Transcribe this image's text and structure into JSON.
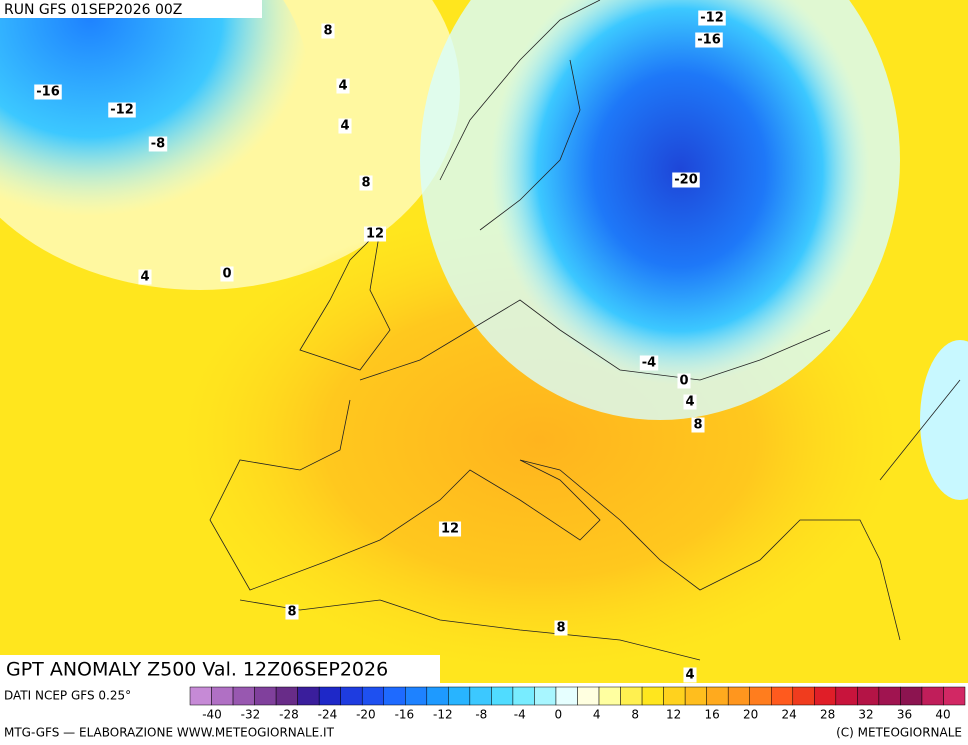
{
  "header": {
    "run": "RUN GFS 01SEP2026 00Z"
  },
  "map": {
    "title": "GPT ANOMALY Z500 Val. 12Z06SEP2026",
    "contour_labels": [
      8,
      -12,
      -16,
      -16,
      -12,
      4,
      4,
      -8,
      -20,
      8,
      12,
      4,
      0,
      -4,
      0,
      4,
      8,
      12,
      8,
      8,
      4
    ]
  },
  "footer": {
    "source": "DATI NCEP GFS 0.25°",
    "credit": "MTG-GFS — ELABORAZIONE WWW.METEOGIORNALE.IT",
    "copyright": "(C) METEOGIORNALE"
  },
  "colorbar": {
    "ticks": [
      -40,
      -32,
      -28,
      -24,
      -20,
      -16,
      -12,
      -8,
      -4,
      0,
      4,
      8,
      12,
      16,
      20,
      24,
      28,
      32,
      36,
      40
    ],
    "colors": [
      "#c68ad6",
      "#b070c4",
      "#9858b0",
      "#80409c",
      "#682c88",
      "#3a1e9c",
      "#1e28c8",
      "#1e3ce0",
      "#1e50f0",
      "#1e6aff",
      "#1e82ff",
      "#1e9aff",
      "#28b4ff",
      "#3cc8ff",
      "#50dcff",
      "#78ecff",
      "#a8f6ff",
      "#e6ffff",
      "#ffffe0",
      "#ffffa0",
      "#fff050",
      "#ffe61e",
      "#ffd21e",
      "#ffbe1e",
      "#ffaa1e",
      "#ff961e",
      "#ff7d1e",
      "#ff5a1e",
      "#f03c1e",
      "#e01e28",
      "#c8143c",
      "#b41446",
      "#a01450",
      "#8c1450",
      "#c01e5a",
      "#d22864"
    ]
  }
}
